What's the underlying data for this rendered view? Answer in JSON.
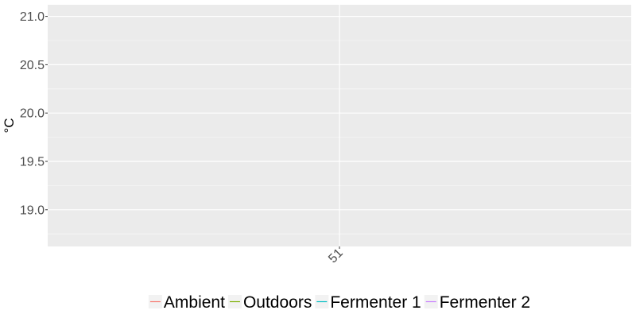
{
  "chart_data": {
    "type": "line",
    "title": "",
    "xlabel": "",
    "ylabel": "°C",
    "x_ticks": [
      "51"
    ],
    "y_ticks": [
      "19.0",
      "19.5",
      "20.0",
      "20.5",
      "21.0"
    ],
    "ylim": [
      18.62,
      21.12
    ],
    "grid": true,
    "legend_position": "bottom",
    "series": [
      {
        "name": "Ambient",
        "color": "#f8766d",
        "values": []
      },
      {
        "name": "Outdoors",
        "color": "#7cae00",
        "values": []
      },
      {
        "name": "Fermenter 1",
        "color": "#00bfc4",
        "values": []
      },
      {
        "name": "Fermenter 2",
        "color": "#c77cff",
        "values": []
      }
    ]
  }
}
